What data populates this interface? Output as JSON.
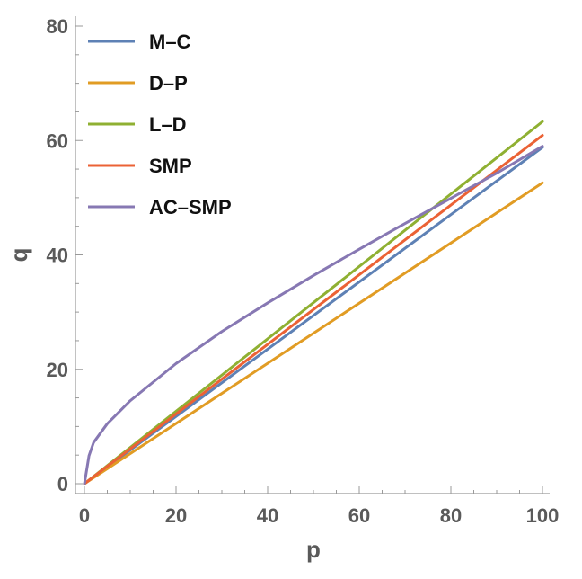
{
  "chart_data": {
    "type": "line",
    "xlabel": "p",
    "ylabel": "q",
    "xlim": [
      0,
      100
    ],
    "ylim": [
      0,
      80
    ],
    "x_ticks": [
      "0",
      "20",
      "40",
      "60",
      "80",
      "100"
    ],
    "y_ticks": [
      "0",
      "20",
      "40",
      "60",
      "80"
    ],
    "legend_position": "top-left",
    "grid": false,
    "series": [
      {
        "name": "M–C",
        "color": "#5e81b5",
        "x": [
          0,
          100
        ],
        "y": [
          0,
          58.8
        ]
      },
      {
        "name": "D–P",
        "color": "#e19c24",
        "x": [
          0,
          100
        ],
        "y": [
          0,
          52.6
        ]
      },
      {
        "name": "L–D",
        "color": "#8fb032",
        "x": [
          0,
          100
        ],
        "y": [
          0,
          63.3
        ]
      },
      {
        "name": "SMP",
        "color": "#eb6235",
        "x": [
          0,
          100
        ],
        "y": [
          0,
          60.9
        ]
      },
      {
        "name": "AC–SMP",
        "color": "#8778b3",
        "x": [
          0,
          1,
          2,
          5,
          10,
          20,
          30,
          40,
          50,
          60,
          70,
          80,
          90,
          100
        ],
        "y": [
          0,
          4.9,
          7.2,
          10.5,
          14.5,
          21.0,
          26.6,
          31.6,
          36.4,
          41.0,
          45.5,
          49.9,
          54.3,
          59.0
        ]
      }
    ]
  }
}
